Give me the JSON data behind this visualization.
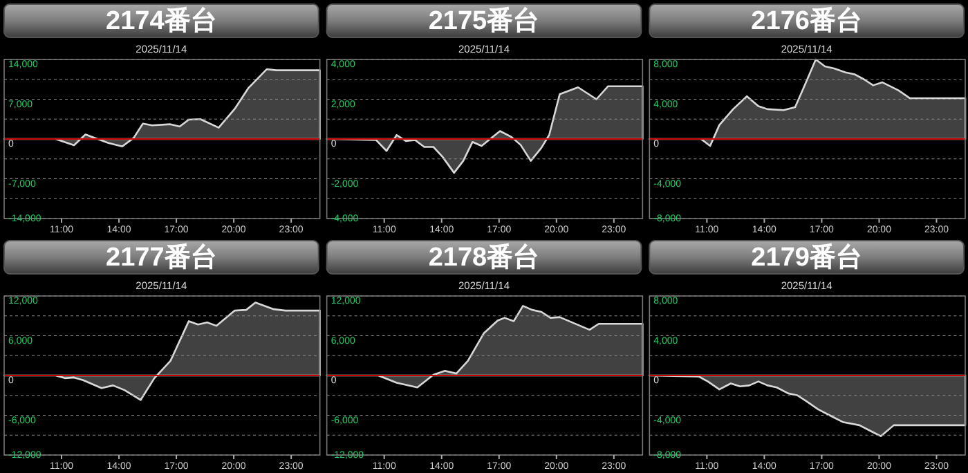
{
  "chart_data": [
    {
      "type": "area",
      "title": "2174番台",
      "subtitle": "2025/11/14",
      "color": "#d8d8d8",
      "grid": "y",
      "x": [
        8,
        10.69,
        11.65,
        12.25,
        13.45,
        14.17,
        14.77,
        15.25,
        15.73,
        16.69,
        17.17,
        17.65,
        18.25,
        19.21,
        20.05,
        20.77,
        21.73,
        22.21,
        24.5
      ],
      "values": [
        0,
        0,
        -1100,
        800,
        -700,
        -1300,
        200,
        2700,
        2400,
        2600,
        2200,
        3400,
        3500,
        2000,
        5300,
        9000,
        12300,
        12100,
        12100
      ],
      "xlim": [
        8,
        24.5
      ],
      "xticks": [
        {
          "value": 11,
          "label": "11:00"
        },
        {
          "value": 14,
          "label": "14:00"
        },
        {
          "value": 17,
          "label": "17:00"
        },
        {
          "value": 20,
          "label": "20:00"
        },
        {
          "value": 23,
          "label": "23:00"
        }
      ],
      "ylim": [
        -14000,
        14000
      ],
      "yticks": [
        {
          "value": 14000,
          "label": "14,000"
        },
        {
          "value": 10500,
          "label": null
        },
        {
          "value": 7000,
          "label": "7,000"
        },
        {
          "value": 3500,
          "label": null
        },
        {
          "value": 0,
          "label": "0"
        },
        {
          "value": -3500,
          "label": null
        },
        {
          "value": -7000,
          "label": "-7,000"
        },
        {
          "value": -10500,
          "label": null
        },
        {
          "value": -14000,
          "label": "-14,000"
        }
      ],
      "ref_lines": [
        {
          "axis": "y",
          "value": 0,
          "color": "#cc0000"
        }
      ]
    },
    {
      "type": "area",
      "title": "2175番台",
      "subtitle": "2025/11/14",
      "color": "#d8d8d8",
      "grid": "y",
      "x": [
        8,
        10.57,
        11.12,
        11.65,
        12.13,
        12.61,
        13.09,
        13.57,
        14.05,
        14.65,
        15.13,
        15.61,
        16.09,
        17.05,
        17.65,
        18.13,
        18.66,
        19.21,
        19.62,
        20.17,
        21.13,
        22.09,
        22.69,
        24.5
      ],
      "values": [
        0,
        -50,
        -600,
        200,
        -100,
        -50,
        -400,
        -400,
        -900,
        -1700,
        -1100,
        -150,
        -350,
        400,
        100,
        -300,
        -1100,
        -450,
        200,
        2250,
        2600,
        2000,
        2650,
        2650
      ],
      "xlim": [
        8,
        24.5
      ],
      "xticks": [
        {
          "value": 11,
          "label": "11:00"
        },
        {
          "value": 14,
          "label": "14:00"
        },
        {
          "value": 17,
          "label": "17:00"
        },
        {
          "value": 20,
          "label": "20:00"
        },
        {
          "value": 23,
          "label": "23:00"
        }
      ],
      "ylim": [
        -4000,
        4000
      ],
      "yticks": [
        {
          "value": 4000,
          "label": "4,000"
        },
        {
          "value": 3000,
          "label": null
        },
        {
          "value": 2000,
          "label": "2,000"
        },
        {
          "value": 1000,
          "label": null
        },
        {
          "value": 0,
          "label": "0"
        },
        {
          "value": -1000,
          "label": null
        },
        {
          "value": -2000,
          "label": "-2,000"
        },
        {
          "value": -3000,
          "label": null
        },
        {
          "value": -4000,
          "label": "-4,000"
        }
      ],
      "ref_lines": [
        {
          "axis": "y",
          "value": 0,
          "color": "#cc0000"
        }
      ]
    },
    {
      "type": "area",
      "title": "2176番台",
      "subtitle": "2025/11/14",
      "color": "#d8d8d8",
      "grid": "y",
      "x": [
        8,
        10.69,
        11.17,
        11.65,
        12.37,
        13.09,
        13.69,
        14.17,
        15.01,
        15.61,
        16.09,
        16.69,
        17.17,
        17.65,
        18.25,
        18.73,
        19.21,
        19.69,
        20.17,
        21.01,
        21.61,
        24.5
      ],
      "values": [
        0,
        0,
        -700,
        1400,
        3000,
        4300,
        3300,
        3000,
        2900,
        3200,
        5300,
        8000,
        7300,
        7100,
        6700,
        6500,
        6000,
        5400,
        5700,
        4900,
        4100,
        4100
      ],
      "xlim": [
        8,
        24.5
      ],
      "xticks": [
        {
          "value": 11,
          "label": "11:00"
        },
        {
          "value": 14,
          "label": "14:00"
        },
        {
          "value": 17,
          "label": "17:00"
        },
        {
          "value": 20,
          "label": "20:00"
        },
        {
          "value": 23,
          "label": "23:00"
        }
      ],
      "ylim": [
        -8000,
        8000
      ],
      "yticks": [
        {
          "value": 8000,
          "label": "8,000"
        },
        {
          "value": 6000,
          "label": null
        },
        {
          "value": 4000,
          "label": "4,000"
        },
        {
          "value": 2000,
          "label": null
        },
        {
          "value": 0,
          "label": "0"
        },
        {
          "value": -2000,
          "label": null
        },
        {
          "value": -4000,
          "label": "-4,000"
        },
        {
          "value": -6000,
          "label": null
        },
        {
          "value": -8000,
          "label": "-8,000"
        }
      ],
      "ref_lines": [
        {
          "axis": "y",
          "value": 0,
          "color": "#cc0000"
        }
      ]
    },
    {
      "type": "area",
      "title": "2177番台",
      "subtitle": "2025/11/14",
      "color": "#d8d8d8",
      "grid": "y",
      "x": [
        8,
        10.69,
        11.17,
        11.65,
        12.13,
        13.09,
        13.69,
        14.29,
        15.13,
        15.85,
        16.69,
        17.65,
        18.13,
        18.61,
        19.09,
        20.05,
        20.65,
        21.13,
        22.09,
        22.69,
        24.5
      ],
      "values": [
        0,
        0,
        -400,
        -300,
        -700,
        -1900,
        -1500,
        -2200,
        -3700,
        -400,
        2200,
        8200,
        7700,
        8000,
        7500,
        9800,
        9900,
        11000,
        10000,
        9800,
        9800
      ],
      "xlim": [
        8,
        24.5
      ],
      "xticks": [
        {
          "value": 11,
          "label": "11:00"
        },
        {
          "value": 14,
          "label": "14:00"
        },
        {
          "value": 17,
          "label": "17:00"
        },
        {
          "value": 20,
          "label": "20:00"
        },
        {
          "value": 23,
          "label": "23:00"
        }
      ],
      "ylim": [
        -12000,
        12000
      ],
      "yticks": [
        {
          "value": 12000,
          "label": "12,000"
        },
        {
          "value": 9000,
          "label": null
        },
        {
          "value": 6000,
          "label": "6,000"
        },
        {
          "value": 3000,
          "label": null
        },
        {
          "value": 0,
          "label": "0"
        },
        {
          "value": -3000,
          "label": null
        },
        {
          "value": -6000,
          "label": "-6,000"
        },
        {
          "value": -9000,
          "label": null
        },
        {
          "value": -12000,
          "label": "-12,000"
        }
      ],
      "ref_lines": [
        {
          "axis": "y",
          "value": 0,
          "color": "#cc0000"
        }
      ]
    },
    {
      "type": "area",
      "title": "2178番台",
      "subtitle": "2025/11/14",
      "color": "#d8d8d8",
      "grid": "y",
      "x": [
        8,
        10.69,
        11.65,
        12.73,
        13.57,
        14.17,
        14.77,
        15.37,
        16.21,
        16.93,
        17.29,
        17.77,
        18.25,
        18.73,
        19.21,
        19.69,
        20.17,
        21.73,
        22.21,
        24.5
      ],
      "values": [
        0,
        0,
        -1100,
        -1800,
        100,
        700,
        300,
        2200,
        6400,
        8300,
        8700,
        8200,
        10500,
        9900,
        9600,
        8700,
        8800,
        6900,
        7800,
        7800
      ],
      "xlim": [
        8,
        24.5
      ],
      "xticks": [
        {
          "value": 11,
          "label": "11:00"
        },
        {
          "value": 14,
          "label": "14:00"
        },
        {
          "value": 17,
          "label": "17:00"
        },
        {
          "value": 20,
          "label": "20:00"
        },
        {
          "value": 23,
          "label": "23:00"
        }
      ],
      "ylim": [
        -12000,
        12000
      ],
      "yticks": [
        {
          "value": 12000,
          "label": "12,000"
        },
        {
          "value": 9000,
          "label": null
        },
        {
          "value": 6000,
          "label": "6,000"
        },
        {
          "value": 3000,
          "label": null
        },
        {
          "value": 0,
          "label": "0"
        },
        {
          "value": -3000,
          "label": null
        },
        {
          "value": -6000,
          "label": "-6,000"
        },
        {
          "value": -9000,
          "label": null
        },
        {
          "value": -12000,
          "label": "-12,000"
        }
      ],
      "ref_lines": [
        {
          "axis": "y",
          "value": 0,
          "color": "#cc0000"
        }
      ]
    },
    {
      "type": "area",
      "title": "2179番台",
      "subtitle": "2025/11/14",
      "color": "#d8d8d8",
      "grid": "y",
      "x": [
        8,
        10.57,
        11.05,
        11.65,
        12.25,
        12.73,
        13.21,
        13.69,
        14.17,
        14.65,
        15.25,
        15.73,
        16.21,
        16.81,
        17.41,
        18.13,
        18.97,
        19.57,
        20.09,
        20.77,
        21.73,
        24.5
      ],
      "values": [
        0,
        -100,
        -600,
        -1400,
        -800,
        -1100,
        -1000,
        -600,
        -1000,
        -1200,
        -1800,
        -2000,
        -2600,
        -3400,
        -4000,
        -4700,
        -5000,
        -5600,
        -6100,
        -5000,
        -5000,
        -5000
      ],
      "xlim": [
        8,
        24.5
      ],
      "xticks": [
        {
          "value": 11,
          "label": "11:00"
        },
        {
          "value": 14,
          "label": "14:00"
        },
        {
          "value": 17,
          "label": "17:00"
        },
        {
          "value": 20,
          "label": "20:00"
        },
        {
          "value": 23,
          "label": "23:00"
        }
      ],
      "ylim": [
        -8000,
        8000
      ],
      "yticks": [
        {
          "value": 8000,
          "label": "8,000"
        },
        {
          "value": 6000,
          "label": null
        },
        {
          "value": 4000,
          "label": "4,000"
        },
        {
          "value": 2000,
          "label": null
        },
        {
          "value": 0,
          "label": "0"
        },
        {
          "value": -2000,
          "label": null
        },
        {
          "value": -4000,
          "label": "-4,000"
        },
        {
          "value": -6000,
          "label": null
        },
        {
          "value": -8000,
          "label": "-8,000"
        }
      ],
      "ref_lines": [
        {
          "axis": "y",
          "value": 0,
          "color": "#cc0000"
        }
      ]
    }
  ]
}
